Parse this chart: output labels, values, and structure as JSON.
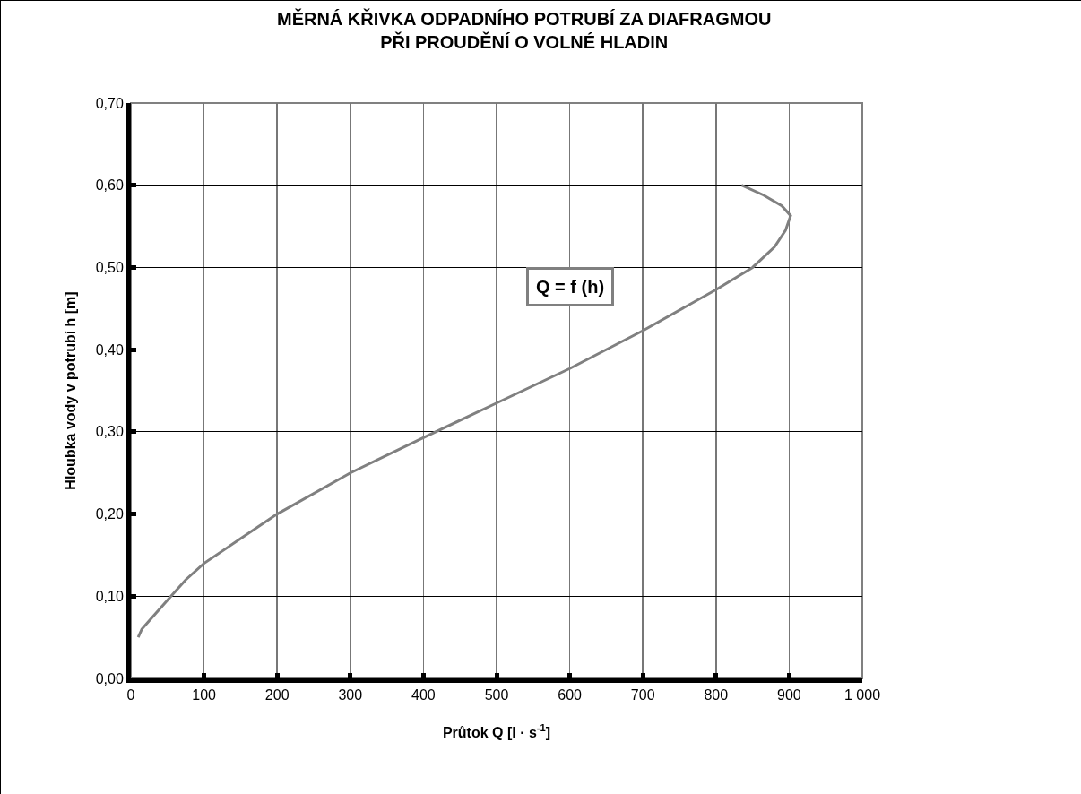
{
  "chart_data": {
    "type": "line",
    "title": "MĚRNÁ KŘIVKA ODPADNÍHO POTRUBÍ ZA DIAFRAGMOU\nPŘI PROUDĚNÍ O VOLNÉ HLADIN",
    "xlabel": "Průtok Q [l · s$^{-1}$]",
    "ylabel": "Hloubka vody v potrubí h [m]",
    "annotations": [
      "Q = f (h)"
    ],
    "series": [
      {
        "color": "#808080",
        "x": [
          10,
          15,
          25,
          50,
          75,
          100,
          150,
          200,
          300,
          400,
          500,
          600,
          700,
          800,
          850,
          880,
          895,
          902,
          890,
          865,
          835
        ],
        "values": [
          0.05,
          0.06,
          0.07,
          0.095,
          0.12,
          0.14,
          0.17,
          0.2,
          0.25,
          0.293,
          0.335,
          0.377,
          0.423,
          0.473,
          0.5,
          0.525,
          0.545,
          0.563,
          0.575,
          0.588,
          0.6
        ]
      }
    ],
    "xlim": [
      0,
      1000
    ],
    "xticks": [
      0,
      100,
      200,
      300,
      400,
      500,
      600,
      700,
      800,
      900,
      {
        "value": 1000,
        "label": "1 000"
      }
    ],
    "ylim": [
      0,
      0.7
    ],
    "yticks": [
      {
        "value": 0,
        "label": "0,00"
      },
      {
        "value": 0.1,
        "label": "0,10"
      },
      {
        "value": 0.2,
        "label": "0,20"
      },
      {
        "value": 0.3,
        "label": "0,30"
      },
      {
        "value": 0.4,
        "label": "0,40"
      },
      {
        "value": 0.5,
        "label": "0,50"
      },
      {
        "value": 0.6,
        "label": "0,60"
      },
      {
        "value": 0.7,
        "label": "0,70"
      }
    ],
    "grid": true,
    "legend": false,
    "marker": "none",
    "line_style": "solid"
  }
}
